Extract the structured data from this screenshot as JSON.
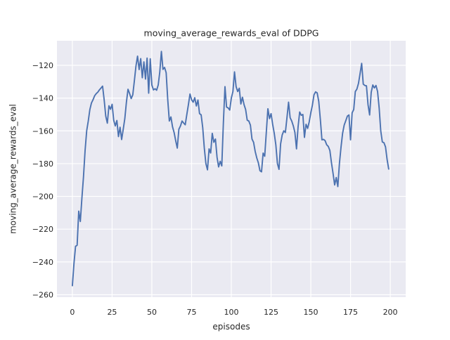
{
  "figure": {
    "title": "moving_average_rewards_eval of DDPG",
    "xlabel": "episodes",
    "ylabel": "moving_average_rewards_eval"
  },
  "chart_data": {
    "type": "line",
    "title": "moving_average_rewards_eval of DDPG",
    "xlabel": "episodes",
    "ylabel": "moving_average_rewards_eval",
    "grid": true,
    "legend": "none",
    "plot_bg": "#eaeaf2",
    "grid_color": "#ffffff",
    "line_color": "#4c72b0",
    "text_color": "#262626",
    "xlim": [
      -9.7,
      209.7
    ],
    "ylim": [
      -261.5,
      -105.0
    ],
    "x_ticks": [
      0,
      25,
      50,
      75,
      100,
      125,
      150,
      175,
      200
    ],
    "x_tick_labels": [
      "0",
      "25",
      "50",
      "75",
      "100",
      "125",
      "150",
      "175",
      "200"
    ],
    "y_ticks": [
      -120,
      -140,
      -160,
      -180,
      -200,
      -220,
      -240,
      -260
    ],
    "y_tick_labels": [
      "−120",
      "−140",
      "−160",
      "−180",
      "−200",
      "−220",
      "−240",
      "−260"
    ],
    "x_start": 0,
    "x_step": 1,
    "series": [
      {
        "name": "moving_average_rewards_eval",
        "values": [
          -254.5,
          -241.0,
          -230.5,
          -229.8,
          -209.0,
          -215.3,
          -201.0,
          -188.0,
          -172.0,
          -160.0,
          -154.0,
          -147.0,
          -143.0,
          -141.0,
          -138.6,
          -137.3,
          -136.4,
          -135.0,
          -133.9,
          -132.7,
          -141.0,
          -151.0,
          -155.3,
          -144.7,
          -146.8,
          -143.8,
          -153.5,
          -157.0,
          -153.7,
          -163.5,
          -157.8,
          -165.3,
          -159.0,
          -152.5,
          -142.5,
          -134.6,
          -137.2,
          -140.3,
          -138.0,
          -129.5,
          -120.5,
          -114.4,
          -122.6,
          -115.9,
          -127.6,
          -117.9,
          -128.4,
          -115.6,
          -137.0,
          -116.0,
          -132.0,
          -135.0,
          -134.3,
          -135.2,
          -132.0,
          -124.0,
          -111.5,
          -122.5,
          -121.3,
          -124.5,
          -141.0,
          -154.0,
          -151.5,
          -157.5,
          -161.0,
          -166.0,
          -170.5,
          -159.0,
          -157.0,
          -154.0,
          -155.2,
          -156.3,
          -150.0,
          -144.0,
          -137.5,
          -141.0,
          -142.5,
          -139.8,
          -144.8,
          -141.2,
          -149.5,
          -150.2,
          -158.0,
          -170.5,
          -180.0,
          -183.8,
          -171.0,
          -173.5,
          -161.5,
          -167.0,
          -165.0,
          -176.0,
          -182.0,
          -178.6,
          -181.4,
          -155.0,
          -133.0,
          -145.5,
          -146.0,
          -147.3,
          -140.0,
          -136.0,
          -124.0,
          -133.0,
          -136.0,
          -134.0,
          -143.6,
          -139.5,
          -144.0,
          -147.0,
          -153.5,
          -154.0,
          -156.5,
          -165.0,
          -167.0,
          -172.5,
          -176.5,
          -179.5,
          -184.3,
          -185.0,
          -173.6,
          -175.5,
          -161.0,
          -146.5,
          -152.5,
          -149.5,
          -156.0,
          -161.5,
          -168.5,
          -180.0,
          -183.5,
          -168.0,
          -162.5,
          -160.0,
          -161.0,
          -152.0,
          -142.5,
          -152.0,
          -154.0,
          -157.0,
          -161.0,
          -171.0,
          -157.5,
          -148.5,
          -150.5,
          -150.0,
          -164.0,
          -156.0,
          -158.5,
          -154.5,
          -149.0,
          -144.3,
          -138.0,
          -136.2,
          -136.8,
          -142.0,
          -153.0,
          -165.5,
          -165.2,
          -166.0,
          -168.5,
          -169.5,
          -172.0,
          -179.5,
          -186.0,
          -193.0,
          -188.5,
          -194.0,
          -180.0,
          -170.0,
          -161.5,
          -156.5,
          -153.8,
          -151.0,
          -150.3,
          -165.5,
          -149.0,
          -147.0,
          -136.0,
          -134.5,
          -131.0,
          -125.0,
          -118.8,
          -131.5,
          -132.3,
          -132.5,
          -144.0,
          -150.3,
          -136.5,
          -132.0,
          -133.8,
          -132.3,
          -136.0,
          -146.0,
          -160.0,
          -166.8,
          -167.2,
          -169.8,
          -177.5,
          -183.3
        ]
      }
    ]
  }
}
